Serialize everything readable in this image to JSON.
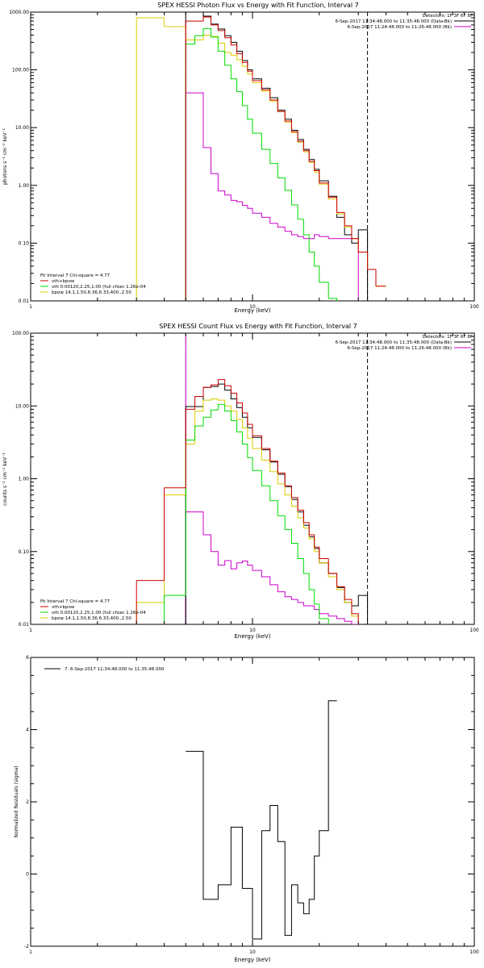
{
  "colors": {
    "data": "#000000",
    "total": "#cc0000",
    "vth": "#00dd00",
    "bpow": "#ddcc00",
    "bk": "#cc00cc"
  },
  "chart_data": [
    {
      "type": "line",
      "style": "step",
      "title": "SPEX HESSI Photon Flux vs Energy with Fit Function, Interval 7",
      "xlabel": "Energy (keV)",
      "ylabel": "photons s⁻¹ cm⁻² keV⁻¹",
      "xscale": "log",
      "yscale": "log",
      "xlim": [
        1,
        100
      ],
      "ylim": [
        0.01,
        1000
      ],
      "xticks": [
        1,
        10,
        100
      ],
      "xtick_labels": [
        "1",
        "10",
        "100"
      ],
      "yticks": [
        0.01,
        0.1,
        1,
        10,
        100,
        1000
      ],
      "ytick_labels": [
        "0.01",
        "0.10",
        "1.00",
        "10.00",
        "100.00",
        "1000.00"
      ],
      "vlines": [
        {
          "x": 5,
          "style": "dotted",
          "color": "#cc00cc"
        },
        {
          "x": 33,
          "style": "dashed",
          "color": "#000000"
        }
      ],
      "legend_topright": {
        "detectors": "Detectors: 1F 3F 6F 8F",
        "entries": [
          {
            "text": "6-Sep-2017 11:34:48.000 to 11:35:48.000 (Data-Bk)",
            "color": "#000000"
          },
          {
            "text": "6-Sep-2017 11:24:48.000 to 11:26:48.000 (Bk)",
            "color": "#cc00cc"
          }
        ]
      },
      "legend_bottomleft": {
        "header": "Fit Interval 7   Chi-square = 4.77",
        "entries": [
          {
            "text": "vth+bpow",
            "color": "#cc0000"
          },
          {
            "text": "vth 0.00120,2.25,1.00  (full chian 1.26e-04",
            "color": "#00dd00"
          },
          {
            "text": "bpow 14.1,1.50,8.36,6.33,400.,2.50",
            "color": "#ddcc00"
          }
        ]
      },
      "edges": [
        3,
        4,
        5,
        5.5,
        6,
        6.5,
        7,
        7.5,
        8,
        8.5,
        9,
        9.5,
        10,
        11,
        12,
        13,
        14,
        15,
        16,
        17,
        18,
        19,
        20,
        22,
        24,
        26,
        28,
        30,
        33,
        36,
        40
      ],
      "series": [
        {
          "name": "vth+bpow",
          "key": "total",
          "values": [
            null,
            null,
            700,
            700,
            820,
            600,
            480,
            360,
            270,
            190,
            135,
            95,
            65,
            45,
            30,
            19,
            13,
            8.5,
            5.8,
            4.0,
            2.6,
            1.8,
            1.1,
            0.62,
            0.34,
            0.2,
            0.12,
            0.07,
            0.035,
            0.018,
            0.011
          ]
        },
        {
          "name": "vth",
          "key": "vth",
          "values": [
            null,
            null,
            280,
            390,
            520,
            370,
            210,
            120,
            70,
            42,
            24,
            14,
            8.0,
            4.2,
            2.4,
            1.35,
            0.82,
            0.46,
            0.26,
            0.14,
            0.07,
            0.04,
            0.021,
            0.011,
            null,
            null,
            null,
            null,
            null,
            null,
            null
          ]
        },
        {
          "name": "bpow",
          "key": "bpow",
          "values": [
            800,
            560,
            330,
            330,
            400,
            380,
            290,
            200,
            180,
            150,
            115,
            85,
            60,
            43,
            29,
            19,
            12.5,
            8.2,
            5.6,
            3.8,
            2.5,
            1.7,
            1.05,
            0.58,
            0.32,
            0.19,
            0.12,
            0.07,
            0.035,
            0.018,
            0.011
          ]
        }
      ],
      "data_series": {
        "name": "Data-Bk",
        "key": "data",
        "values": [
          null,
          null,
          1000,
          1000,
          850,
          620,
          510,
          390,
          300,
          210,
          145,
          100,
          70,
          48,
          33,
          20,
          14,
          9.0,
          6.2,
          4.2,
          2.8,
          1.9,
          1.2,
          0.65,
          0.28,
          0.14,
          0.1,
          0.17,
          null,
          null,
          null
        ]
      },
      "bk_series": {
        "name": "Bk",
        "key": "bk",
        "values": [
          null,
          null,
          40,
          40,
          4.5,
          1.6,
          0.8,
          0.68,
          0.55,
          0.52,
          0.45,
          0.4,
          0.33,
          0.28,
          0.22,
          0.19,
          0.16,
          0.14,
          0.13,
          0.12,
          0.12,
          0.14,
          0.13,
          0.12,
          0.12,
          0.12,
          0.12,
          null,
          null,
          null,
          null
        ]
      }
    },
    {
      "type": "line",
      "style": "step",
      "title": "SPEX HESSI Count Flux vs Energy with Fit Function, Interval 7",
      "xlabel": "Energy (keV)",
      "ylabel": "counts s⁻¹ cm⁻² keV⁻¹",
      "xscale": "log",
      "yscale": "log",
      "xlim": [
        1,
        100
      ],
      "ylim": [
        0.01,
        100
      ],
      "xticks": [
        1,
        10,
        100
      ],
      "xtick_labels": [
        "1",
        "10",
        "100"
      ],
      "yticks": [
        0.01,
        0.1,
        1,
        10,
        100
      ],
      "ytick_labels": [
        "0.01",
        "0.10",
        "1.00",
        "10.00",
        "100.00"
      ],
      "vlines": [
        {
          "x": 5,
          "style": "dotted",
          "color": "#000000"
        },
        {
          "x": 5,
          "style": "solid",
          "color": "#cc00cc"
        },
        {
          "x": 33,
          "style": "dashed",
          "color": "#000000"
        }
      ],
      "legend_topright": {
        "detectors": "Detectors: 1F 3F 6F 8F",
        "entries": [
          {
            "text": "6-Sep-2017 11:34:48.000 to 11:35:48.000 (Data-Bk)",
            "color": "#000000"
          },
          {
            "text": "6-Sep-2017 11:24:48.000 to 11:26:48.000 (Bk)",
            "color": "#cc00cc"
          }
        ]
      },
      "legend_bottomleft": {
        "header": "Fit Interval 7   Chi-square = 4.77",
        "entries": [
          {
            "text": "vth+bpow",
            "color": "#cc0000"
          },
          {
            "text": "vth 0.00120,2.25,1.00  (full chian 1.26e-04",
            "color": "#00dd00"
          },
          {
            "text": "bpow 14.1,1.50,8.36,6.33,400.,2.50",
            "color": "#ddcc00"
          }
        ]
      },
      "edges": [
        3,
        4,
        5,
        5.5,
        6,
        6.5,
        7,
        7.5,
        8,
        8.5,
        9,
        9.5,
        10,
        11,
        12,
        13,
        14,
        15,
        16,
        17,
        18,
        19,
        20,
        22,
        24,
        26,
        28,
        30,
        33,
        36,
        40
      ],
      "series": [
        {
          "name": "vth+bpow",
          "key": "total",
          "values": [
            0.04,
            0.75,
            9.0,
            13.5,
            18.0,
            19.5,
            23.0,
            19.0,
            15.0,
            11.0,
            8.0,
            5.6,
            3.9,
            2.6,
            1.75,
            1.2,
            0.8,
            0.55,
            0.37,
            0.25,
            0.17,
            0.115,
            0.08,
            0.05,
            0.033,
            0.022,
            0.014,
            null,
            null,
            null,
            null
          ]
        },
        {
          "name": "vth",
          "key": "vth",
          "values": [
            null,
            0.025,
            3.4,
            5.3,
            7.0,
            8.8,
            10.5,
            8.5,
            6.3,
            4.4,
            3.0,
            1.95,
            1.3,
            0.8,
            0.5,
            0.31,
            0.2,
            0.13,
            0.08,
            0.05,
            0.03,
            0.019,
            0.012,
            null,
            null,
            null,
            null,
            null,
            null,
            null,
            null
          ]
        },
        {
          "name": "bpow",
          "key": "bpow",
          "values": [
            0.02,
            0.6,
            3.0,
            8.5,
            12.0,
            12.5,
            12.0,
            10.0,
            8.5,
            6.5,
            5.0,
            3.6,
            2.6,
            1.8,
            1.25,
            0.85,
            0.6,
            0.42,
            0.29,
            0.21,
            0.15,
            0.1,
            0.07,
            0.045,
            0.03,
            0.02,
            0.013,
            null,
            null,
            null,
            null
          ]
        }
      ],
      "data_series": {
        "name": "Data-Bk",
        "key": "data",
        "values": [
          null,
          null,
          9.8,
          9.8,
          18.0,
          18.5,
          20.0,
          16.5,
          12.5,
          9.5,
          7.0,
          5.0,
          3.7,
          2.5,
          1.7,
          1.15,
          0.78,
          0.52,
          0.35,
          0.23,
          0.16,
          0.11,
          0.07,
          0.05,
          0.032,
          0.02,
          0.018,
          0.025,
          null,
          null,
          null
        ]
      },
      "bk_series": {
        "name": "Bk",
        "key": "bk",
        "values": [
          null,
          null,
          0.35,
          0.35,
          0.17,
          0.1,
          0.065,
          0.075,
          0.058,
          0.07,
          0.074,
          0.065,
          0.055,
          0.045,
          0.035,
          0.028,
          0.024,
          0.022,
          0.02,
          0.018,
          0.018,
          0.016,
          0.014,
          0.013,
          0.012,
          0.011,
          0.01,
          null,
          null,
          null,
          null
        ]
      }
    },
    {
      "type": "line",
      "style": "step",
      "title": "",
      "xlabel": "Energy (keV)",
      "ylabel": "Normalized Residuals (sigma)",
      "xscale": "log",
      "yscale": "linear",
      "xlim": [
        1,
        100
      ],
      "ylim": [
        -2,
        6
      ],
      "xticks": [
        1,
        10,
        100
      ],
      "xtick_labels": [
        "1",
        "10",
        "100"
      ],
      "yticks": [
        -2,
        0,
        2,
        4,
        6
      ],
      "ytick_labels": [
        "-2",
        "0",
        "2",
        "4",
        "6"
      ],
      "legend_topleft": {
        "entries": [
          {
            "text": "7.  6-Sep-2017 11:34:48.000 to 11:35:48.000",
            "color": "#000000"
          }
        ]
      },
      "edges": [
        5,
        6,
        7,
        8,
        9,
        10,
        11,
        12,
        13,
        14,
        15,
        16,
        17,
        18,
        19,
        20,
        22,
        24,
        26,
        28,
        30,
        33
      ],
      "series": [
        {
          "name": "7.  6-Sep-2017 11:34:48.000 to 11:35:48.000",
          "key": "data",
          "values": [
            3.4,
            -0.7,
            -0.3,
            1.3,
            -0.4,
            -1.8,
            1.2,
            1.9,
            0.9,
            -1.7,
            -0.3,
            -0.8,
            -1.1,
            -0.7,
            0.5,
            1.2,
            4.8,
            null,
            null,
            null,
            null
          ]
        }
      ]
    }
  ]
}
